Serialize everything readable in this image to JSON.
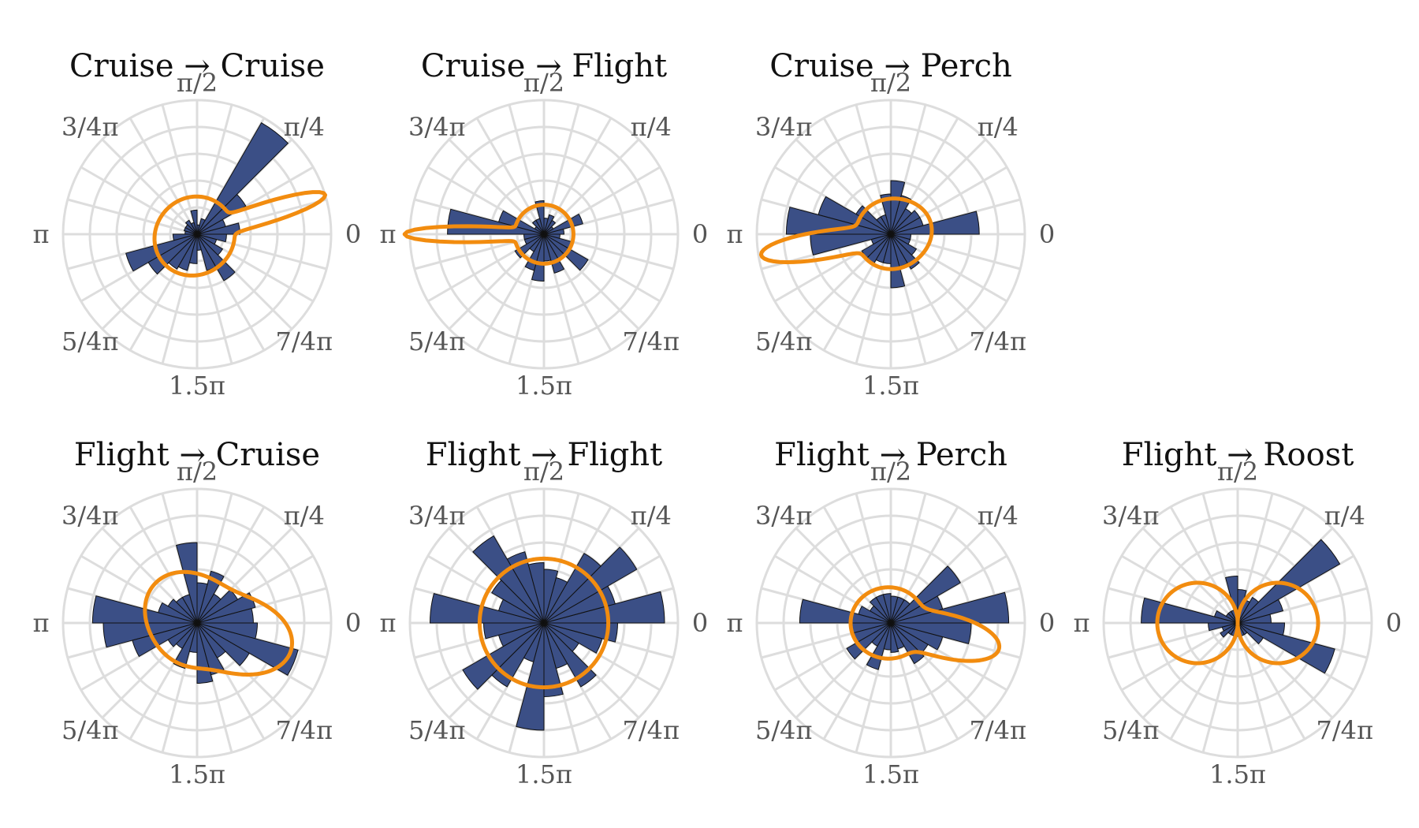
{
  "figure": {
    "tick_labels": [
      "0",
      "π/4",
      "π/2",
      "3/4π",
      "π",
      "5/4π",
      "1.5π",
      "7/4π"
    ],
    "colors": {
      "bars": "#3b4f86",
      "density": "#f28c0f",
      "grid": "#dddddd"
    }
  },
  "chart_data": [
    {
      "type": "polar-histogram",
      "from": "Cruise",
      "to": "Cruise",
      "bins": 24,
      "rmax": 1.0,
      "values": [
        0.32,
        0.22,
        0.42,
        0.96,
        0.12,
        0.07,
        0.18,
        0.09,
        0.12,
        0.1,
        0.1,
        0.09,
        0.18,
        0.55,
        0.42,
        0.3,
        0.28,
        0.22,
        0.12,
        0.28,
        0.4,
        0.22,
        0.15,
        0.22
      ],
      "density": {
        "kind": "mixture",
        "base": 0.28,
        "peaks": [
          {
            "mu": 0.3,
            "h": 0.72,
            "w": 0.1
          },
          {
            "mu": 3.8,
            "h": 0.05,
            "w": 0.8
          }
        ]
      }
    },
    {
      "type": "polar-histogram",
      "from": "Cruise",
      "to": "Flight",
      "bins": 24,
      "rmax": 1.0,
      "values": [
        0.15,
        0.3,
        0.08,
        0.12,
        0.15,
        0.12,
        0.25,
        0.12,
        0.12,
        0.08,
        0.35,
        0.72,
        0.15,
        0.15,
        0.25,
        0.15,
        0.28,
        0.35,
        0.2,
        0.3,
        0.22,
        0.38,
        0.22,
        0.12
      ],
      "density": {
        "kind": "mixture",
        "base": 0.22,
        "peaks": [
          {
            "mu": 3.14159,
            "h": 0.82,
            "w": 0.08
          }
        ]
      }
    },
    {
      "type": "polar-histogram",
      "from": "Cruise",
      "to": "Perch",
      "bins": 24,
      "rmax": 1.0,
      "values": [
        0.66,
        0.25,
        0.25,
        0.22,
        0.3,
        0.4,
        0.3,
        0.15,
        0.15,
        0.3,
        0.56,
        0.78,
        0.6,
        0.15,
        0.25,
        0.25,
        0.22,
        0.22,
        0.4,
        0.25,
        0.3,
        0.22,
        0.15,
        0.15
      ],
      "density": {
        "kind": "mixture",
        "base": 0.26,
        "peaks": [
          {
            "mu": 3.3,
            "h": 0.72,
            "w": 0.14
          },
          {
            "mu": 0.3,
            "h": 0.05,
            "w": 0.6
          }
        ]
      }
    },
    {
      "type": "polar-histogram",
      "from": "Flight",
      "to": "Cruise",
      "bins": 24,
      "rmax": 1.0,
      "values": [
        0.42,
        0.45,
        0.35,
        0.25,
        0.4,
        0.3,
        0.6,
        0.22,
        0.22,
        0.25,
        0.3,
        0.78,
        0.7,
        0.5,
        0.25,
        0.22,
        0.35,
        0.22,
        0.45,
        0.4,
        0.3,
        0.45,
        0.78,
        0.45
      ],
      "density": {
        "kind": "mixture",
        "base": 0.33,
        "peaks": [
          {
            "mu": 6.0,
            "h": 0.4,
            "w": 0.45
          },
          {
            "mu": 2.4,
            "h": 0.1,
            "w": 0.6
          }
        ]
      }
    },
    {
      "type": "polar-histogram",
      "from": "Flight",
      "to": "Flight",
      "bins": 24,
      "rmax": 1.0,
      "values": [
        0.9,
        0.55,
        0.8,
        0.6,
        0.35,
        0.4,
        0.45,
        0.55,
        0.75,
        0.45,
        0.35,
        0.85,
        0.45,
        0.35,
        0.7,
        0.55,
        0.3,
        0.8,
        0.55,
        0.35,
        0.55,
        0.3,
        0.45,
        0.55
      ],
      "density": {
        "kind": "circle",
        "r": 0.48
      }
    },
    {
      "type": "polar-histogram",
      "from": "Flight",
      "to": "Perch",
      "bins": 24,
      "rmax": 1.0,
      "values": [
        0.88,
        0.4,
        0.6,
        0.2,
        0.2,
        0.2,
        0.22,
        0.22,
        0.22,
        0.18,
        0.25,
        0.68,
        0.3,
        0.3,
        0.38,
        0.2,
        0.36,
        0.2,
        0.22,
        0.2,
        0.35,
        0.32,
        0.4,
        0.6
      ],
      "density": {
        "kind": "mixture",
        "base": 0.26,
        "peaks": [
          {
            "mu": 6.05,
            "h": 0.57,
            "w": 0.25
          },
          {
            "mu": 3.14159,
            "h": 0.04,
            "w": 0.8
          }
        ]
      }
    },
    {
      "type": "polar-histogram",
      "from": "Flight",
      "to": "Roost",
      "bins": 24,
      "rmax": 1.0,
      "values": [
        0.25,
        0.35,
        0.88,
        0.22,
        0.18,
        0.25,
        0.35,
        0.1,
        0.1,
        0.1,
        0.18,
        0.72,
        0.22,
        0.12,
        0.15,
        0.1,
        0.1,
        0.05,
        0.1,
        0.1,
        0.1,
        0.22,
        0.75,
        0.35
      ],
      "density": {
        "kind": "figure8",
        "r": 0.6
      }
    }
  ]
}
